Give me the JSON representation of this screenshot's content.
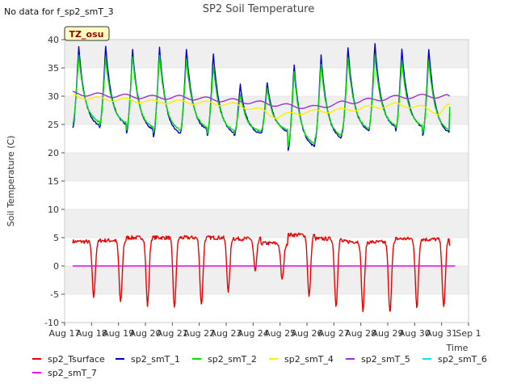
{
  "header": {
    "title": "SP2 Soil Temperature",
    "no_data_note": "No data for f_sp2_smT_3",
    "badge": "TZ_osu"
  },
  "chart_data": {
    "type": "line",
    "title": "SP2 Soil Temperature",
    "xlabel": "Time",
    "ylabel": "Soil Temperature (C)",
    "ylim": [
      -10,
      40
    ],
    "xlim": [
      17,
      32
    ],
    "y_ticks": [
      -10,
      -5,
      0,
      5,
      10,
      15,
      20,
      25,
      30,
      35,
      40
    ],
    "x_ticks": [
      {
        "v": 17,
        "label": "Aug 17"
      },
      {
        "v": 18,
        "label": "Aug 18"
      },
      {
        "v": 19,
        "label": "Aug 19"
      },
      {
        "v": 20,
        "label": "Aug 20"
      },
      {
        "v": 21,
        "label": "Aug 21"
      },
      {
        "v": 22,
        "label": "Aug 22"
      },
      {
        "v": 23,
        "label": "Aug 23"
      },
      {
        "v": 24,
        "label": "Aug 24"
      },
      {
        "v": 25,
        "label": "Aug 25"
      },
      {
        "v": 26,
        "label": "Aug 26"
      },
      {
        "v": 27,
        "label": "Aug 27"
      },
      {
        "v": 28,
        "label": "Aug 28"
      },
      {
        "v": 29,
        "label": "Aug 29"
      },
      {
        "v": 30,
        "label": "Aug 30"
      },
      {
        "v": 31,
        "label": "Aug 31"
      },
      {
        "v": 32,
        "label": "Sep 1"
      }
    ],
    "grid": "horizontal bands",
    "legend_placement": "bottom",
    "series": [
      {
        "name": "sp2_Tsurface",
        "color": "#ee0000",
        "daily_max": [
          4.3,
          4.5,
          5.0,
          5.0,
          5.0,
          5.0,
          4.8,
          4.0,
          5.5,
          4.8,
          4.3,
          4.2,
          4.8,
          4.7,
          3.5
        ],
        "daily_min": [
          -5.5,
          -6.5,
          -7.0,
          -7.5,
          -6.8,
          -4.5,
          -1.0,
          -2.5,
          -5.5,
          -7.0,
          -8.0,
          -8.3,
          -7.5,
          -7.5,
          -7.0
        ]
      },
      {
        "name": "sp2_smT_1",
        "color": "#0000cc",
        "daily_max": [
          39.0,
          39.0,
          38.5,
          39.0,
          38.5,
          37.8,
          32.2,
          32.6,
          35.8,
          37.5,
          38.8,
          39.5,
          38.5,
          38.7,
          38.5
        ],
        "daily_min": [
          24.3,
          24.5,
          23.5,
          22.8,
          23.5,
          23.0,
          23.0,
          23.5,
          20.5,
          22.0,
          23.3,
          24.0,
          24.0,
          23.0,
          27.0
        ]
      },
      {
        "name": "sp2_smT_2",
        "color": "#00dd00",
        "daily_max": [
          37.5,
          37.0,
          37.3,
          37.5,
          36.8,
          35.5,
          30.5,
          31.5,
          34.5,
          36.0,
          37.0,
          37.5,
          36.5,
          36.5,
          36.5
        ],
        "daily_min": [
          25.0,
          24.8,
          24.0,
          23.5,
          24.0,
          23.5,
          23.5,
          23.8,
          21.0,
          22.5,
          23.8,
          24.3,
          24.3,
          23.5,
          28.0
        ]
      },
      {
        "name": "sp2_smT_4",
        "color": "#ffee00",
        "values": [
          [
            17.3,
            30.0
          ],
          [
            18.3,
            29.5
          ],
          [
            19.3,
            29.3
          ],
          [
            20.3,
            29.0
          ],
          [
            21.3,
            29.0
          ],
          [
            22.3,
            28.8
          ],
          [
            23.3,
            28.5
          ],
          [
            24.3,
            27.5
          ],
          [
            24.9,
            26.3
          ],
          [
            25.5,
            27.0
          ],
          [
            26.3,
            27.3
          ],
          [
            27.3,
            27.5
          ],
          [
            28.3,
            28.0
          ],
          [
            29.3,
            28.5
          ],
          [
            30.3,
            28.0
          ],
          [
            30.9,
            27.0
          ],
          [
            31.3,
            28.5
          ]
        ]
      },
      {
        "name": "sp2_smT_5",
        "color": "#9933cc",
        "values": [
          [
            17.3,
            30.5
          ],
          [
            18.3,
            30.2
          ],
          [
            19.3,
            30.0
          ],
          [
            20.3,
            29.8
          ],
          [
            21.3,
            29.8
          ],
          [
            22.3,
            29.5
          ],
          [
            23.3,
            29.2
          ],
          [
            24.3,
            28.8
          ],
          [
            25.3,
            28.3
          ],
          [
            26.3,
            28.0
          ],
          [
            27.3,
            28.8
          ],
          [
            28.3,
            29.3
          ],
          [
            29.3,
            29.8
          ],
          [
            30.3,
            30.0
          ],
          [
            31.3,
            30.0
          ]
        ]
      },
      {
        "name": "sp2_smT_6",
        "color": "#00e5ee",
        "values": []
      },
      {
        "name": "sp2_smT_7",
        "color": "#ee00ee",
        "values": [
          [
            17.3,
            0.0
          ],
          [
            31.5,
            0.0
          ]
        ]
      }
    ]
  },
  "legend": [
    {
      "name": "sp2_Tsurface",
      "color": "#ee0000"
    },
    {
      "name": "sp2_smT_1",
      "color": "#0000cc"
    },
    {
      "name": "sp2_smT_2",
      "color": "#00dd00"
    },
    {
      "name": "sp2_smT_4",
      "color": "#ffee00"
    },
    {
      "name": "sp2_smT_5",
      "color": "#9933cc"
    },
    {
      "name": "sp2_smT_6",
      "color": "#00e5ee"
    },
    {
      "name": "sp2_smT_7",
      "color": "#ee00ee"
    }
  ]
}
